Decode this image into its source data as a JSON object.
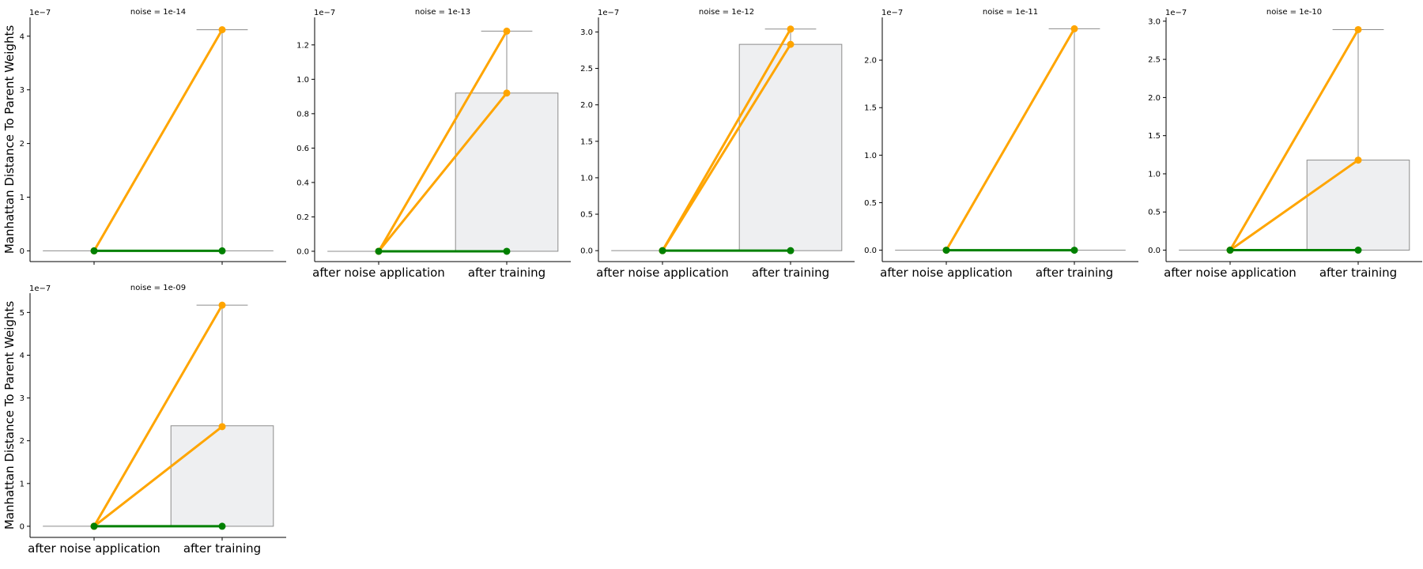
{
  "chart_data": [
    {
      "type": "box+line",
      "title": "noise = 1e-14",
      "ylabel": "Manhattan Distance To Parent Weights",
      "categories": [
        "",
        ""
      ],
      "y_offset_label": "1e−7",
      "yticks": [
        0,
        1,
        2,
        3,
        4
      ],
      "ytick_labels": [
        "0",
        "1",
        "2",
        "3",
        "4"
      ],
      "ylim": [
        -0.2,
        4.35
      ],
      "box": {
        "q1": 0,
        "q3": 0,
        "whisker_high": 4.12
      },
      "series": [
        {
          "color": "#ffa500",
          "values": [
            0,
            4.12
          ]
        },
        {
          "color": "#008000",
          "values": [
            0,
            0
          ]
        }
      ]
    },
    {
      "type": "box+line",
      "title": "noise = 1e-13",
      "ylabel": "",
      "categories": [
        "after noise application",
        "after training"
      ],
      "y_offset_label": "1e−7",
      "yticks": [
        0,
        0.2,
        0.4,
        0.6,
        0.8,
        1.0,
        1.2
      ],
      "ytick_labels": [
        "0.0",
        "0.2",
        "0.4",
        "0.6",
        "0.8",
        "1.0",
        "1.2"
      ],
      "ylim": [
        -0.06,
        1.36
      ],
      "box": {
        "q1": 0,
        "q3": 0.92,
        "whisker_high": 1.28
      },
      "series": [
        {
          "color": "#ffa500",
          "values": [
            0,
            1.28
          ]
        },
        {
          "color": "#ffa500",
          "values": [
            0,
            0.92
          ]
        },
        {
          "color": "#008000",
          "values": [
            0,
            0
          ]
        }
      ]
    },
    {
      "type": "box+line",
      "title": "noise = 1e-12",
      "ylabel": "",
      "categories": [
        "after noise application",
        "after training"
      ],
      "y_offset_label": "1e−7",
      "yticks": [
        0,
        0.5,
        1.0,
        1.5,
        2.0,
        2.5,
        3.0
      ],
      "ytick_labels": [
        "0.0",
        "0.5",
        "1.0",
        "1.5",
        "2.0",
        "2.5",
        "3.0"
      ],
      "ylim": [
        -0.15,
        3.2
      ],
      "box": {
        "q1": 0,
        "q3": 2.83,
        "whisker_high": 3.04
      },
      "series": [
        {
          "color": "#ffa500",
          "values": [
            0,
            3.04
          ]
        },
        {
          "color": "#ffa500",
          "values": [
            0,
            2.83
          ]
        },
        {
          "color": "#008000",
          "values": [
            0,
            0
          ]
        }
      ]
    },
    {
      "type": "box+line",
      "title": "noise = 1e-11",
      "ylabel": "",
      "categories": [
        "after noise application",
        "after training"
      ],
      "y_offset_label": "1e−7",
      "yticks": [
        0,
        0.5,
        1.0,
        1.5,
        2.0
      ],
      "ytick_labels": [
        "0.0",
        "0.5",
        "1.0",
        "1.5",
        "2.0"
      ],
      "ylim": [
        -0.12,
        2.45
      ],
      "box": {
        "q1": 0,
        "q3": 0,
        "whisker_high": 2.33
      },
      "series": [
        {
          "color": "#ffa500",
          "values": [
            0,
            2.33
          ]
        },
        {
          "color": "#008000",
          "values": [
            0,
            0
          ]
        }
      ]
    },
    {
      "type": "box+line",
      "title": "noise = 1e-10",
      "ylabel": "",
      "categories": [
        "after noise application",
        "after training"
      ],
      "y_offset_label": "1e−7",
      "yticks": [
        0,
        0.5,
        1.0,
        1.5,
        2.0,
        2.5,
        3.0
      ],
      "ytick_labels": [
        "0.0",
        "0.5",
        "1.0",
        "1.5",
        "2.0",
        "2.5",
        "3.0"
      ],
      "ylim": [
        -0.15,
        3.05
      ],
      "box": {
        "q1": 0,
        "q3": 1.18,
        "whisker_high": 2.89
      },
      "series": [
        {
          "color": "#ffa500",
          "values": [
            0,
            2.89
          ]
        },
        {
          "color": "#ffa500",
          "values": [
            0,
            1.18
          ]
        },
        {
          "color": "#008000",
          "values": [
            0,
            0
          ]
        }
      ]
    },
    {
      "type": "box+line",
      "title": "noise = 1e-09",
      "ylabel": "Manhattan Distance To Parent Weights",
      "categories": [
        "after noise application",
        "after training"
      ],
      "y_offset_label": "1e−7",
      "yticks": [
        0,
        1,
        2,
        3,
        4,
        5
      ],
      "ytick_labels": [
        "0",
        "1",
        "2",
        "3",
        "4",
        "5"
      ],
      "ylim": [
        -0.26,
        5.45
      ],
      "box": {
        "q1": 0,
        "q3": 2.35,
        "whisker_high": 5.17
      },
      "series": [
        {
          "color": "#ffa500",
          "values": [
            0,
            5.17
          ]
        },
        {
          "color": "#ffa500",
          "values": [
            0,
            2.33
          ]
        },
        {
          "color": "#008000",
          "values": [
            0,
            0
          ]
        }
      ]
    }
  ]
}
